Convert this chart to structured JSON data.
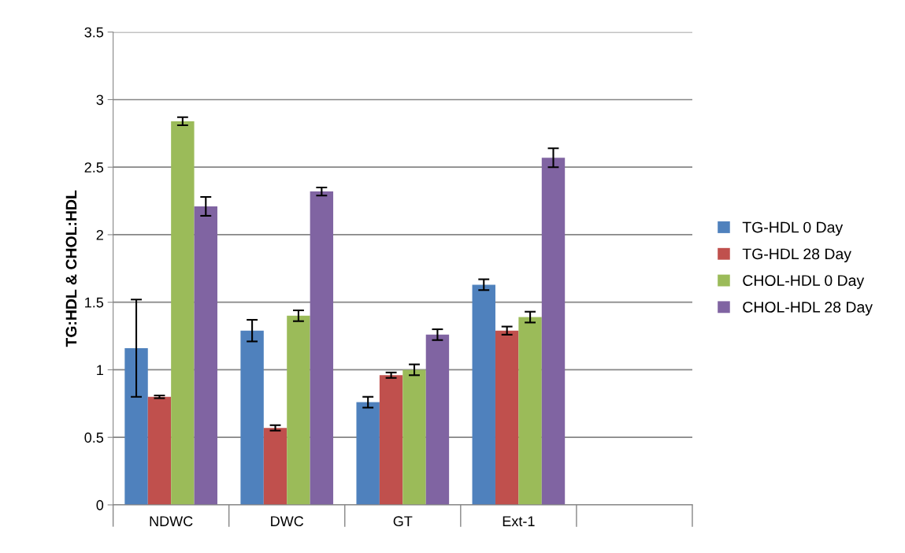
{
  "chart_data": {
    "type": "bar",
    "ylabel": "TG:HDL & CHOL:HDL",
    "categories": [
      "NDWC",
      "DWC",
      "GT",
      "Ext-1",
      null
    ],
    "series": [
      {
        "name": "TG-HDL 0 Day",
        "color": "#4f81bd",
        "values": [
          1.16,
          1.29,
          0.76,
          1.63,
          null
        ],
        "errors": [
          0.36,
          0.08,
          0.04,
          0.04,
          null
        ]
      },
      {
        "name": "TG-HDL 28 Day",
        "color": "#c0504d",
        "values": [
          0.8,
          0.57,
          0.96,
          1.29,
          null
        ],
        "errors": [
          0.01,
          0.02,
          0.02,
          0.03,
          null
        ]
      },
      {
        "name": "CHOL-HDL 0 Day",
        "color": "#9bbb59",
        "values": [
          2.84,
          1.4,
          1.0,
          1.39,
          null
        ],
        "errors": [
          0.03,
          0.04,
          0.04,
          0.04,
          null
        ]
      },
      {
        "name": "CHOL-HDL 28 Day",
        "color": "#8064a2",
        "values": [
          2.21,
          2.32,
          1.26,
          2.57,
          null
        ],
        "errors": [
          0.07,
          0.03,
          0.04,
          0.07,
          null
        ]
      }
    ],
    "ylim": [
      0,
      3.5
    ],
    "yticks": [
      0,
      0.5,
      1,
      1.5,
      2,
      2.5,
      3,
      3.5
    ],
    "grid": "y",
    "legend": "right"
  }
}
